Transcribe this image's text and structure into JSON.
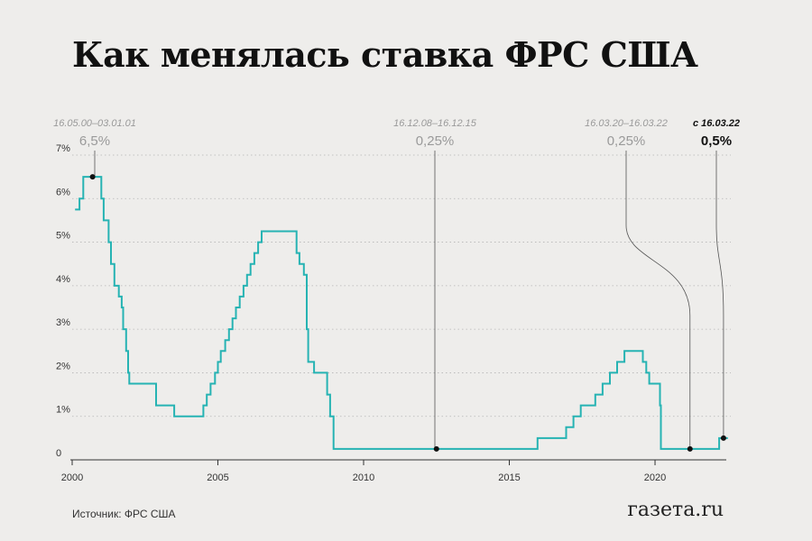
{
  "title": "Как менялась ставка ФРС США",
  "source": "Источник: ФРС США",
  "logo": "газета.ru",
  "colors": {
    "line": "#26b3b3",
    "grid": "#b5b5b5",
    "annotation": "#9a9a9a",
    "text": "#111111",
    "background": "#eeedeb"
  },
  "chart_data": {
    "type": "line",
    "step": true,
    "title": "Как менялась ставка ФРС США",
    "xlabel": "",
    "ylabel": "",
    "xlim": [
      2000,
      2022.6
    ],
    "ylim": [
      0,
      7
    ],
    "grid": "horizontal dotted",
    "x_ticks": [
      "2000",
      "2005",
      "2010",
      "2015",
      "2020"
    ],
    "y_ticks": [
      "0",
      "1%",
      "2%",
      "3%",
      "4%",
      "5%",
      "6%",
      "7%"
    ],
    "series": [
      {
        "points": [
          [
            2000.1,
            5.75
          ],
          [
            2000.25,
            6.0
          ],
          [
            2000.38,
            6.5
          ],
          [
            2001.0,
            6.0
          ],
          [
            2001.08,
            5.5
          ],
          [
            2001.25,
            5.0
          ],
          [
            2001.33,
            4.5
          ],
          [
            2001.45,
            4.0
          ],
          [
            2001.6,
            3.75
          ],
          [
            2001.7,
            3.5
          ],
          [
            2001.75,
            3.0
          ],
          [
            2001.85,
            2.5
          ],
          [
            2001.92,
            2.0
          ],
          [
            2001.96,
            1.75
          ],
          [
            2002.88,
            1.25
          ],
          [
            2003.5,
            1.0
          ],
          [
            2004.5,
            1.25
          ],
          [
            2004.62,
            1.5
          ],
          [
            2004.75,
            1.75
          ],
          [
            2004.9,
            2.0
          ],
          [
            2005.0,
            2.25
          ],
          [
            2005.1,
            2.5
          ],
          [
            2005.25,
            2.75
          ],
          [
            2005.38,
            3.0
          ],
          [
            2005.5,
            3.25
          ],
          [
            2005.62,
            3.5
          ],
          [
            2005.75,
            3.75
          ],
          [
            2005.88,
            4.0
          ],
          [
            2006.0,
            4.25
          ],
          [
            2006.12,
            4.5
          ],
          [
            2006.25,
            4.75
          ],
          [
            2006.38,
            5.0
          ],
          [
            2006.5,
            5.25
          ],
          [
            2007.7,
            4.75
          ],
          [
            2007.8,
            4.5
          ],
          [
            2007.95,
            4.25
          ],
          [
            2008.05,
            3.0
          ],
          [
            2008.1,
            2.25
          ],
          [
            2008.3,
            2.0
          ],
          [
            2008.75,
            1.5
          ],
          [
            2008.85,
            1.0
          ],
          [
            2008.97,
            0.25
          ],
          [
            2015.97,
            0.5
          ],
          [
            2016.95,
            0.75
          ],
          [
            2017.2,
            1.0
          ],
          [
            2017.45,
            1.25
          ],
          [
            2017.95,
            1.5
          ],
          [
            2018.2,
            1.75
          ],
          [
            2018.45,
            2.0
          ],
          [
            2018.7,
            2.25
          ],
          [
            2018.95,
            2.5
          ],
          [
            2019.58,
            2.25
          ],
          [
            2019.7,
            2.0
          ],
          [
            2019.8,
            1.75
          ],
          [
            2020.17,
            1.25
          ],
          [
            2020.2,
            0.25
          ],
          [
            2022.2,
            0.5
          ],
          [
            2022.5,
            0.5
          ]
        ]
      }
    ],
    "annotations": [
      {
        "date": "16.05.00–03.01.01",
        "value": "6,5%",
        "x": 2000.7,
        "y": 6.5,
        "current": false
      },
      {
        "date": "16.12.08–16.12.15",
        "value": "0,25%",
        "x": 2012.5,
        "y": 0.25,
        "current": false
      },
      {
        "date": "16.03.20–16.03.22",
        "value": "0,25%",
        "x": 2021.2,
        "y": 0.25,
        "current": false
      },
      {
        "date": "с 16.03.22",
        "value": "0,5%",
        "x": 2022.35,
        "y": 0.5,
        "current": true
      }
    ]
  }
}
